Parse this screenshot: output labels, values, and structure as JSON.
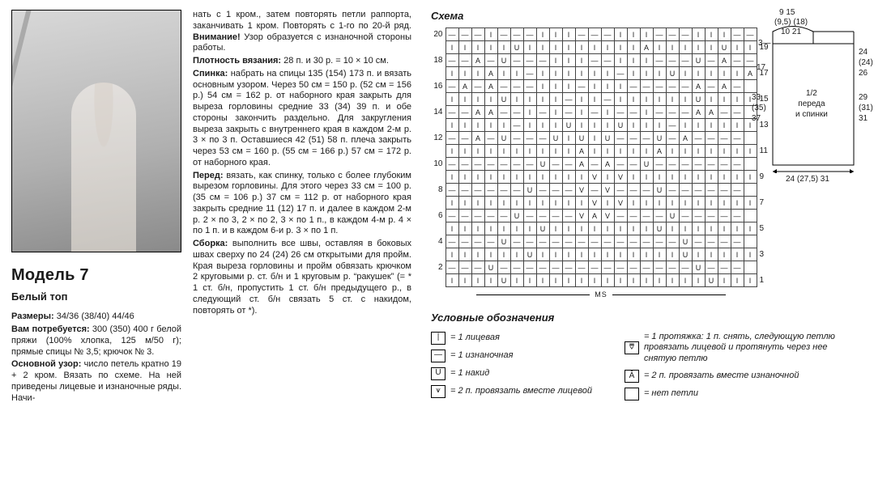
{
  "left": {
    "model_title": "Модель 7",
    "subtitle": "Белый топ",
    "sizes_label": "Размеры:",
    "sizes_value": "34/36 (38/40) 44/46",
    "materials_label": "Вам потребуется:",
    "materials_value": "300 (350) 400 г белой пряжи (100% хлопка, 125 м/50 г); прямые спицы № 3,5; крючок № 3.",
    "pattern_label": "Основной узор:",
    "pattern_value": "число петель кратно 19 + 2 кром. Вязать по схеме. На ней приведены лицевые и изнаночные ряды. Начи-"
  },
  "mid": {
    "p1": "нать с 1 кром., затем повторять петли раппорта, заканчивать 1 кром. Повторять с 1-го по 20-й ряд.",
    "attention_label": "Внимание!",
    "attention_value": "Узор образуется с изнаночной стороны работы.",
    "gauge_label": "Плотность вязания:",
    "gauge_value": "28 п. и 30 р. = 10 × 10 см.",
    "back_label": "Спинка:",
    "back_value": "набрать на спицы 135 (154) 173 п. и вязать основным узором. Через 50 см = 150 р. (52 см = 156 р.) 54 см = 162 р. от наборного края закрыть для выреза горловины средние 33 (34) 39 п. и обе стороны закончить раздельно. Для закругления выреза закрыть с внутреннего края в каждом 2-м р. 3 × по 3 п. Оставшиеся 42 (51) 58 п. плеча закрыть через 53 см = 160 р. (55 см = 166 р.) 57 см = 172 р. от наборного края.",
    "front_label": "Перед:",
    "front_value": "вязать, как спинку, только с более глубоким вырезом горловины. Для этого через 33 см = 100 р. (35 см = 106 р.) 37 см = 112 р. от наборного края закрыть средние 11 (12) 17 п. и далее в каждом 2-м р. 2 × по 3, 2 × по 2, 3 × по 1 п., в каждом 4-м р. 4 × по 1 п. и в каждом 6-и р. 3 × по 1 п.",
    "assembly_label": "Сборка:",
    "assembly_value": "выполнить все швы, оставляя в боковых швах сверху по 24 (24) 26 см открытыми для пройм. Края выреза горловины и пройм обвязать крючком 2 круговыми р. ст. б/н и 1 круговым р. “ракушек” (= * 1 ст. б/н, пропустить 1 ст. б/н предыдущего р., в следующий ст. б/н связать 5 ст. с накидом, повторять от *)."
  },
  "right": {
    "schema_title": "Схема",
    "legend_title": "Условные обозначения",
    "row_labels_left": [
      "20",
      "",
      "18",
      "",
      "16",
      "",
      "14",
      "",
      "12",
      "",
      "10",
      "",
      "8",
      "",
      "6",
      "",
      "4",
      "",
      "2",
      ""
    ],
    "row_labels_right": [
      "",
      "19",
      "",
      "17",
      "",
      "15",
      "",
      "13",
      "",
      "11",
      "",
      "9",
      "",
      "7",
      "",
      "5",
      "",
      "3",
      "",
      "1"
    ],
    "ms_label": "MS",
    "grid": [
      "— — — | — — — | | | — — — | | | — — — | | | — — —",
      "| | | | | U | | | | | | | | | A | | | | | U | | | |",
      "— — A — U — — — | | | — — | | | — — — U — A — —",
      "| | | A | | — | | | | | | — | | | U | | | | | A |",
      "— A — A — — — | | | — | | | — — — — — A — A —",
      "| | | | U | | | | — | | — | | | | | | U | | | | |",
      "— — A A — — | — | — | — | — — | — — — A A — —",
      "| | | | | — | | | U | | | U | | | — | | | | | | |",
      "— — A — U — — — U | U | U — — — U — A — — — —",
      "| | | | | | | | | | A | | | | | A | | | | | | | |",
      "— — — — — — — U — — A — A — — U — — — — — — —",
      "| | | | | | | | | | | V | V | | | | | | | | | | |",
      "— — — — — — U — — — V — V — — — U — — — — — —",
      "| | | | | | | | | | | V | V | | | | | | | | | | |",
      "— — — — — U — — — — V A V — — — — U — — — — —",
      "| | | | | | | U | | | | | | | | U | | | | | | | |",
      "— — — — U — — — — — — — — — — — — — U — — — —",
      "| | | | | | U | | | | | | | | | | | U | | | | | |",
      "— — — U — — — — — — — — — — — — — — — U — — —",
      "| | | | U | | | | | | | | | | | | | | | U | | | |"
    ],
    "legend_left": [
      {
        "sym": "|",
        "text": "= 1 лицевая"
      },
      {
        "sym": "—",
        "text": "= 1 изнаночная"
      },
      {
        "sym": "U",
        "text": "= 1 накид"
      },
      {
        "sym": "⩛",
        "text": "= 2 п. провязать вместе лицевой"
      }
    ],
    "legend_right": [
      {
        "sym": "⩢",
        "text": "= 1 протяжка: 1 п. снять, следующую петлю провязать лицевой и протянуть через нее снятую петлю"
      },
      {
        "sym": "Â",
        "text": "= 2 п. провязать вместе изнаночной"
      },
      {
        "sym": " ",
        "text": "= нет петли"
      }
    ],
    "garment": {
      "top_nums": "9    15",
      "top_nums2": "(9,5)  (18)",
      "top_nums3": "10    21",
      "left3": "3—",
      "left17": "17",
      "leftcol": "33\n(35)\n37",
      "center": "1/2\nпереда\nи спинки",
      "rightcol": "24\n(24)\n26",
      "rightcol2": "29\n(31)\n31",
      "bottom": "24 (27,5) 31"
    }
  }
}
